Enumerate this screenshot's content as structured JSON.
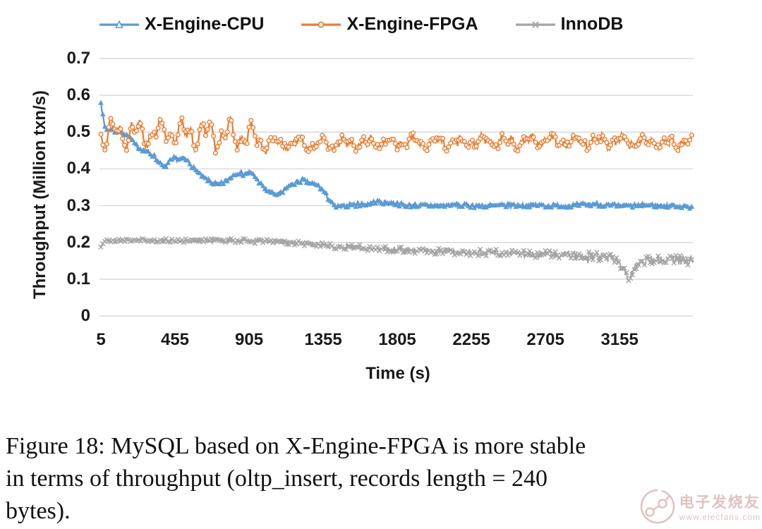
{
  "figure": {
    "caption_lines": [
      "Figure 18: MySQL based on X-Engine-FPGA is more stable",
      "in terms of throughput (oltp_insert, records length = 240",
      "bytes)."
    ]
  },
  "watermark": {
    "brand": "电子发烧友",
    "url": "www.elecfans.com",
    "color": "#c98f8f"
  },
  "chart_data": {
    "type": "line",
    "title": "",
    "xlabel": "Time (s)",
    "ylabel": "Throughput (Million txn/s)",
    "x_ticks": [
      5,
      455,
      905,
      1355,
      1805,
      2255,
      2705,
      3155
    ],
    "y_ticks": [
      0,
      0.1,
      0.2,
      0.3,
      0.4,
      0.5,
      0.6,
      0.7
    ],
    "xlim": [
      5,
      3600
    ],
    "ylim": [
      0,
      0.7
    ],
    "grid": "horizontal-only",
    "gridline_color": "#d2d2d2",
    "legend_position": "top",
    "marker_interval_s": 12,
    "sample_step_s": 6,
    "series": [
      {
        "name": "X-Engine-CPU",
        "color": "#5B9BD5",
        "marker": "triangle",
        "summary": "Starts ~0.58 Mtxn/s, declines in noisy steps (0.43 @450s, 0.39 @850s, 0.36 @1250s) to ~0.30 by t=1500s, then flat ~0.30 to end",
        "jitter": 0.0055,
        "seed": 7,
        "anchors": [
          [
            5,
            0.585
          ],
          [
            10,
            0.565
          ],
          [
            18,
            0.54
          ],
          [
            28,
            0.515
          ],
          [
            45,
            0.505
          ],
          [
            70,
            0.51
          ],
          [
            95,
            0.5
          ],
          [
            125,
            0.505
          ],
          [
            150,
            0.495
          ],
          [
            180,
            0.487
          ],
          [
            210,
            0.468
          ],
          [
            240,
            0.455
          ],
          [
            270,
            0.45
          ],
          [
            300,
            0.443
          ],
          [
            330,
            0.433
          ],
          [
            360,
            0.417
          ],
          [
            390,
            0.404
          ],
          [
            420,
            0.418
          ],
          [
            450,
            0.428
          ],
          [
            480,
            0.424
          ],
          [
            510,
            0.428
          ],
          [
            540,
            0.418
          ],
          [
            570,
            0.4
          ],
          [
            600,
            0.388
          ],
          [
            630,
            0.376
          ],
          [
            660,
            0.369
          ],
          [
            690,
            0.361
          ],
          [
            720,
            0.356
          ],
          [
            750,
            0.362
          ],
          [
            780,
            0.372
          ],
          [
            810,
            0.384
          ],
          [
            840,
            0.39
          ],
          [
            870,
            0.384
          ],
          [
            900,
            0.39
          ],
          [
            930,
            0.383
          ],
          [
            960,
            0.368
          ],
          [
            990,
            0.35
          ],
          [
            1020,
            0.34
          ],
          [
            1050,
            0.334
          ],
          [
            1080,
            0.33
          ],
          [
            1110,
            0.336
          ],
          [
            1140,
            0.35
          ],
          [
            1170,
            0.359
          ],
          [
            1200,
            0.364
          ],
          [
            1230,
            0.369
          ],
          [
            1260,
            0.364
          ],
          [
            1290,
            0.359
          ],
          [
            1320,
            0.354
          ],
          [
            1350,
            0.344
          ],
          [
            1380,
            0.324
          ],
          [
            1410,
            0.304
          ],
          [
            1440,
            0.295
          ],
          [
            1470,
            0.296
          ],
          [
            1500,
            0.3
          ],
          [
            1560,
            0.302
          ],
          [
            1620,
            0.305
          ],
          [
            1680,
            0.31
          ],
          [
            1740,
            0.307
          ],
          [
            1800,
            0.304
          ],
          [
            1860,
            0.301
          ],
          [
            1920,
            0.3
          ],
          [
            2000,
            0.3
          ],
          [
            2100,
            0.301
          ],
          [
            2200,
            0.3
          ],
          [
            2300,
            0.299
          ],
          [
            2400,
            0.3
          ],
          [
            2500,
            0.3
          ],
          [
            2600,
            0.301
          ],
          [
            2700,
            0.3
          ],
          [
            2800,
            0.299
          ],
          [
            2900,
            0.301
          ],
          [
            3000,
            0.304
          ],
          [
            3100,
            0.3
          ],
          [
            3200,
            0.299
          ],
          [
            3300,
            0.3
          ],
          [
            3400,
            0.3
          ],
          [
            3500,
            0.299
          ],
          [
            3600,
            0.296
          ]
        ]
      },
      {
        "name": "X-Engine-FPGA",
        "color": "#ED7D31",
        "marker": "open-circle",
        "summary": "Oscillates 0.45-0.56 before t≈900s, then steady ~0.47 (±0.02) through t=3600s — most stable high line",
        "jitter": 0.011,
        "seed": 13,
        "wave": {
          "period1": 140,
          "period2": 61,
          "amp_early": 0.034,
          "amp_late": 0.013,
          "switch": 900
        },
        "anchors": [
          [
            5,
            0.498
          ],
          [
            300,
            0.5
          ],
          [
            600,
            0.495
          ],
          [
            900,
            0.487
          ],
          [
            1000,
            0.471
          ],
          [
            1400,
            0.468
          ],
          [
            1800,
            0.472
          ],
          [
            2200,
            0.472
          ],
          [
            2600,
            0.475
          ],
          [
            3000,
            0.475
          ],
          [
            3400,
            0.473
          ],
          [
            3600,
            0.471
          ]
        ]
      },
      {
        "name": "InnoDB",
        "color": "#A5A5A5",
        "marker": "x",
        "summary": "Steady ~0.205 until t≈1100s, slow decline to ~0.16 with growing noise, brief dip to ~0.10 near t≈3200s, recovers to ~0.15",
        "jitter": 0.0045,
        "jitter_end": 0.013,
        "seed": 21,
        "anchors": [
          [
            5,
            0.188
          ],
          [
            15,
            0.198
          ],
          [
            30,
            0.203
          ],
          [
            60,
            0.205
          ],
          [
            150,
            0.206
          ],
          [
            300,
            0.206
          ],
          [
            450,
            0.205
          ],
          [
            600,
            0.205
          ],
          [
            750,
            0.205
          ],
          [
            900,
            0.204
          ],
          [
            1000,
            0.203
          ],
          [
            1100,
            0.201
          ],
          [
            1200,
            0.198
          ],
          [
            1300,
            0.194
          ],
          [
            1400,
            0.191
          ],
          [
            1500,
            0.188
          ],
          [
            1600,
            0.185
          ],
          [
            1700,
            0.183
          ],
          [
            1800,
            0.181
          ],
          [
            1900,
            0.179
          ],
          [
            2000,
            0.177
          ],
          [
            2100,
            0.175
          ],
          [
            2200,
            0.173
          ],
          [
            2300,
            0.172
          ],
          [
            2400,
            0.171
          ],
          [
            2500,
            0.17
          ],
          [
            2600,
            0.169
          ],
          [
            2700,
            0.168
          ],
          [
            2800,
            0.166
          ],
          [
            2900,
            0.164
          ],
          [
            3000,
            0.162
          ],
          [
            3100,
            0.158
          ],
          [
            3150,
            0.145
          ],
          [
            3185,
            0.118
          ],
          [
            3210,
            0.103
          ],
          [
            3240,
            0.125
          ],
          [
            3280,
            0.148
          ],
          [
            3350,
            0.152
          ],
          [
            3450,
            0.153
          ],
          [
            3550,
            0.151
          ],
          [
            3600,
            0.15
          ]
        ]
      }
    ]
  }
}
